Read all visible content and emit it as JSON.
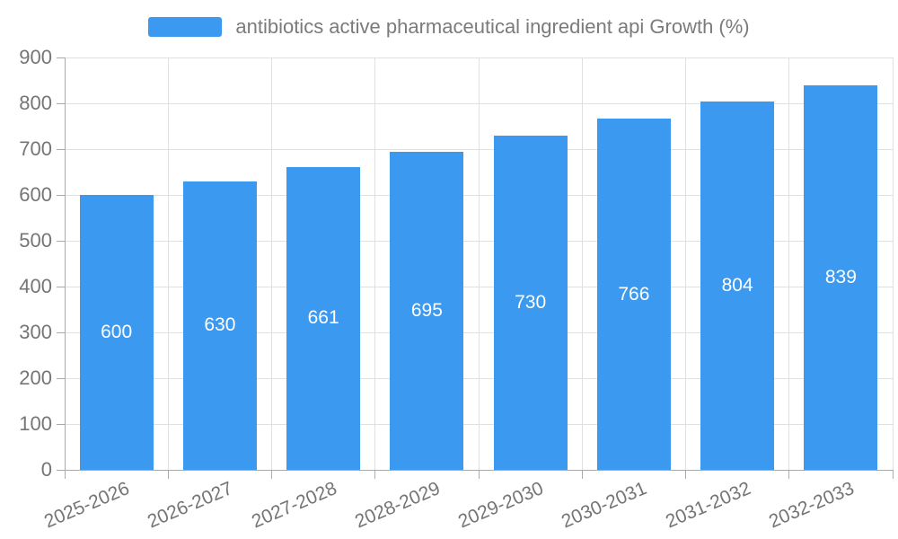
{
  "chart_data": {
    "type": "bar",
    "title": "",
    "legend": "antibiotics active pharmaceutical ingredient api Growth (%)",
    "legend_position": "top-center",
    "categories": [
      "2025-2026",
      "2026-2027",
      "2027-2028",
      "2028-2029",
      "2029-2030",
      "2030-2031",
      "2031-2032",
      "2032-2033"
    ],
    "values": [
      600,
      630,
      661,
      695,
      730,
      766,
      804,
      839
    ],
    "value_labels": [
      "600",
      "630",
      "661",
      "695",
      "730",
      "766",
      "804",
      "839"
    ],
    "xlabel": "",
    "ylabel": "",
    "ylim": [
      0,
      900
    ],
    "ytick_interval": 100,
    "yticks": [
      0,
      100,
      200,
      300,
      400,
      500,
      600,
      700,
      800,
      900
    ],
    "grid": true,
    "colors": {
      "bar": "#3C99F0",
      "value_label": "#ffffff",
      "axis_text": "#757575",
      "grid_line": "#e0e0e0",
      "axis_line": "#aaaaaa"
    }
  }
}
